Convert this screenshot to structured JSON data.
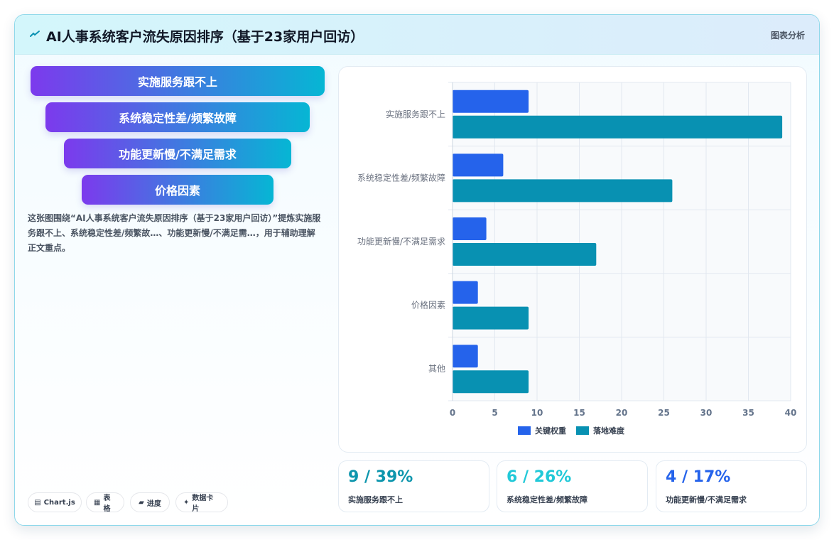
{
  "header": {
    "title": "AI人事系统客户流失原因排序（基于23家用户回访）",
    "tag": "图表分析"
  },
  "funnel": [
    {
      "label": "实施服务跟不上"
    },
    {
      "label": "系统稳定性差/频繁故障"
    },
    {
      "label": "功能更新慢/不满足需求"
    },
    {
      "label": "价格因素"
    }
  ],
  "description": "这张图围绕“AI人事系统客户流失原因排序（基于23家用户回访）”提炼实施服务跟不上、系统稳定性差/频繁故…、功能更新慢/不满足需…，用于辅助理解正文重点。",
  "chips": [
    {
      "icon": "chart-icon",
      "glyph": "▤",
      "label": "Chart.js"
    },
    {
      "icon": "table-icon",
      "glyph": "▦",
      "label": "表格"
    },
    {
      "icon": "progress-icon",
      "glyph": "▰",
      "label": "进度"
    },
    {
      "icon": "card-icon",
      "glyph": "✦",
      "label": "数据卡片"
    }
  ],
  "kpis": [
    {
      "value": "9 / 39%",
      "label": "实施服务跟不上",
      "color": "#0e96ad"
    },
    {
      "value": "6 / 26%",
      "label": "系统稳定性差/频繁故障",
      "color": "#22c9d8"
    },
    {
      "value": "4 / 17%",
      "label": "功能更新慢/不满足需求",
      "color": "#2563eb"
    }
  ],
  "chart_data": {
    "type": "bar",
    "orientation": "horizontal",
    "categories": [
      "实施服务跟不上",
      "系统稳定性差/频繁故障",
      "功能更新慢/不满足需求",
      "价格因素",
      "其他"
    ],
    "series": [
      {
        "name": "关键权重",
        "values": [
          9,
          6,
          4,
          3,
          3
        ],
        "color": "#2563eb"
      },
      {
        "name": "落地难度",
        "values": [
          39,
          26,
          17,
          9,
          9
        ],
        "color": "#0891b2"
      }
    ],
    "xlim": [
      0,
      40
    ],
    "xticks": [
      0,
      5,
      10,
      15,
      20,
      25,
      30,
      35,
      40
    ],
    "grid": true,
    "legend": "bottom"
  }
}
